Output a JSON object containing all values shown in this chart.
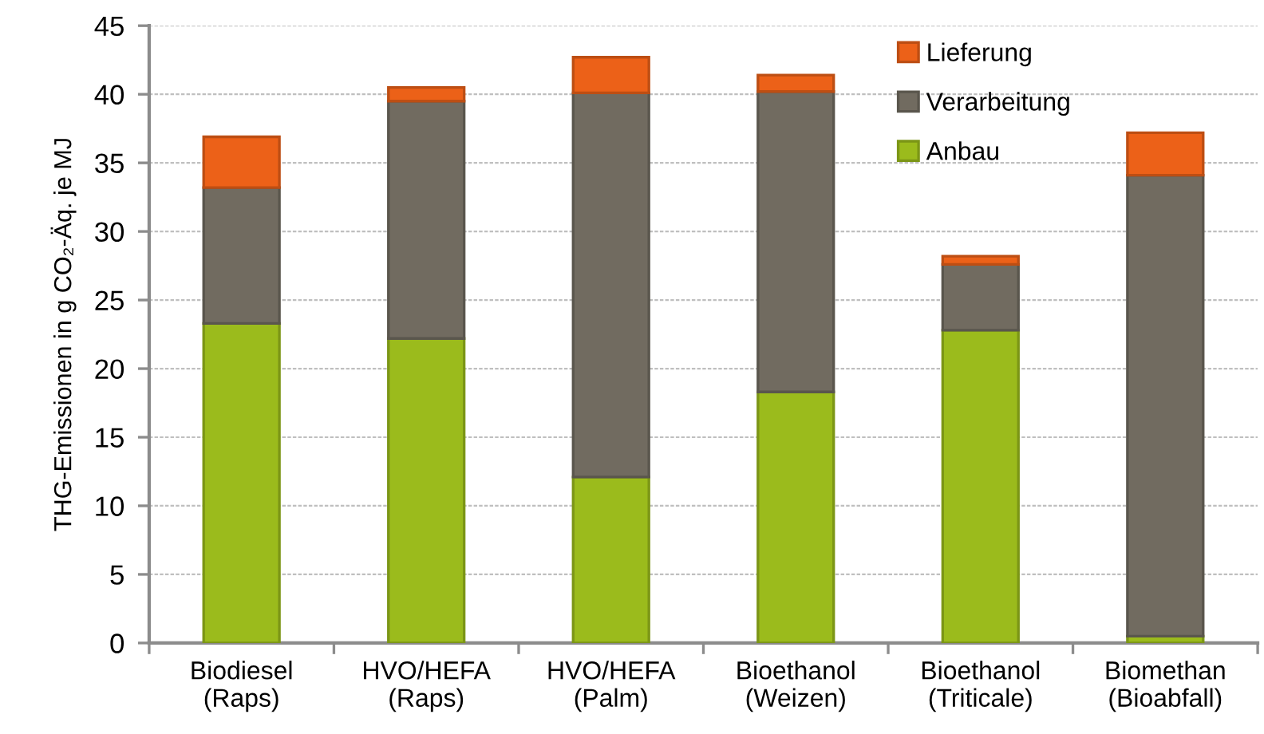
{
  "chart_data": {
    "type": "bar",
    "stacked": true,
    "ylabel": "THG-Emissionen in g CO₂-Äq. je MJ",
    "categories": [
      "Biodiesel\n(Raps)",
      "HVO/HEFA\n(Raps)",
      "HVO/HEFA\n(Palm)",
      "Bioethanol\n(Weizen)",
      "Bioethanol\n(Triticale)",
      "Biomethan\n(Bioabfall)"
    ],
    "series": [
      {
        "name": "Anbau",
        "color": "#9bbb1c",
        "values": [
          23.3,
          22.2,
          12.1,
          18.3,
          22.8,
          0.5
        ]
      },
      {
        "name": "Verarbeitung",
        "color": "#716b60",
        "values": [
          9.9,
          17.3,
          28.0,
          21.9,
          4.8,
          33.6
        ]
      },
      {
        "name": "Lieferung",
        "color": "#ec6118",
        "values": [
          3.7,
          1.0,
          2.6,
          1.2,
          0.6,
          3.1
        ]
      }
    ],
    "ylim": [
      0,
      45
    ],
    "yticks": [
      0,
      5,
      10,
      15,
      20,
      25,
      30,
      35,
      40,
      45
    ],
    "grid": "y",
    "legend": "top right"
  }
}
